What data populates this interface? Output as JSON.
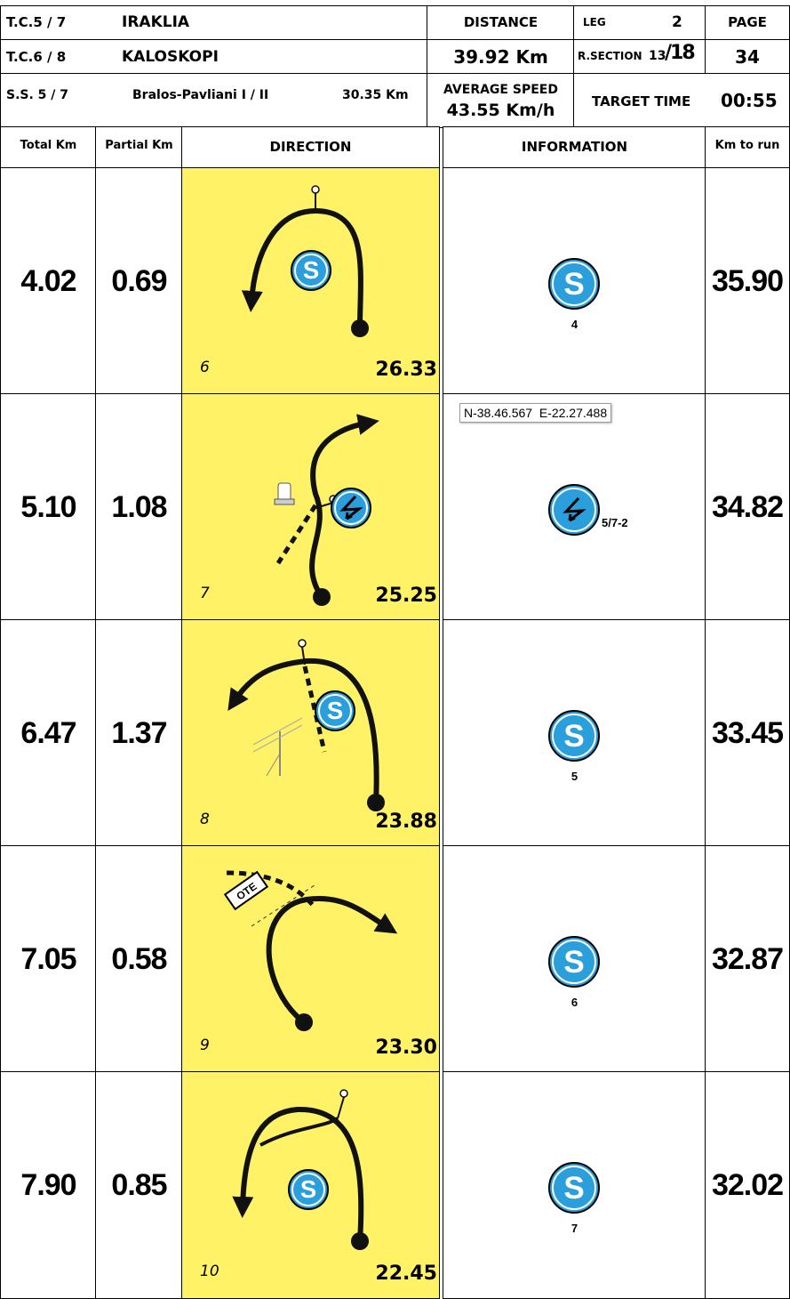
{
  "header": {
    "tc_from": {
      "code": "T.C.5 / 7",
      "name": "IRAKLIA"
    },
    "tc_to": {
      "code": "T.C.6 / 8",
      "name": "KALOSKOPI"
    },
    "special_stage": {
      "code": "S.S. 5 / 7",
      "name": "Bralos-Pavliani I / II",
      "distance": "30.35 Km"
    },
    "distance": {
      "label": "DISTANCE",
      "value": "39.92 Km"
    },
    "leg": {
      "label": "LEG",
      "value": "2"
    },
    "road_section": {
      "label": "R.SECTION",
      "value": "13",
      "total": "/18"
    },
    "page": {
      "label": "PAGE",
      "value": "34"
    },
    "average_speed": {
      "label": "AVERAGE SPEED",
      "value": "43.55 Km/h"
    },
    "target_time": {
      "label": "TARGET TIME",
      "value": "00:55"
    }
  },
  "columns": [
    "Total Km",
    "Partial Km",
    "DIRECTION",
    "INFORMATION",
    "Km to run"
  ],
  "rows": [
    {
      "total_km": "4.02",
      "partial_km": "0.69",
      "step": "6",
      "remaining": "26.33",
      "info": {
        "icon": "S",
        "label": "4"
      },
      "km_to_run": "35.90"
    },
    {
      "total_km": "5.10",
      "partial_km": "1.08",
      "step": "7",
      "remaining": "25.25",
      "info": {
        "icon": "lightning",
        "label": "5/7-2",
        "coordinates": "N-38.46.567  E-22.27.488"
      },
      "km_to_run": "34.82"
    },
    {
      "total_km": "6.47",
      "partial_km": "1.37",
      "step": "8",
      "remaining": "23.88",
      "info": {
        "icon": "S",
        "label": "5"
      },
      "km_to_run": "33.45"
    },
    {
      "total_km": "7.05",
      "partial_km": "0.58",
      "step": "9",
      "remaining": "23.30",
      "info": {
        "icon": "S",
        "label": "6",
        "sign": "OTE"
      },
      "km_to_run": "32.87"
    },
    {
      "total_km": "7.90",
      "partial_km": "0.85",
      "step": "10",
      "remaining": "22.45",
      "info": {
        "icon": "S",
        "label": "7"
      },
      "km_to_run": "32.02"
    }
  ]
}
